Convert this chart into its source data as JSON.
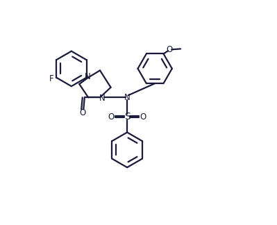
{
  "line_color": "#1a1a3a",
  "line_width": 1.6,
  "bg_color": "#ffffff",
  "label_fontsize": 8.5,
  "fig_width": 3.99,
  "fig_height": 3.24,
  "dpi": 100,
  "xlim": [
    0,
    10
  ],
  "ylim": [
    0,
    8.1
  ]
}
